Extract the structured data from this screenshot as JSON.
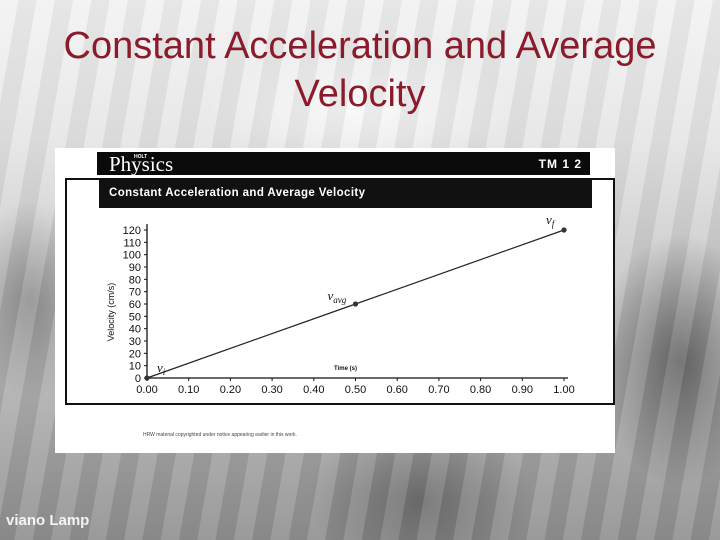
{
  "slide": {
    "title": "Constant Acceleration and Average Velocity",
    "watermark": "viano Lamp"
  },
  "figure": {
    "brand": "Physics",
    "brand_small": "HOLT",
    "code": "TM 1 2",
    "subtitle": "Constant Acceleration and Average Velocity",
    "footnote": "HRW material copyrighted under notice appearing earlier in this work."
  },
  "chart_data": {
    "type": "line",
    "title": "Constant Acceleration and Average Velocity",
    "xlabel": "Time (s)",
    "ylabel": "Velocity (cm/s)",
    "xlim": [
      0,
      1.0
    ],
    "ylim": [
      0,
      120
    ],
    "x_ticks": [
      "0.00",
      "0.10",
      "0.20",
      "0.30",
      "0.40",
      "0.50",
      "0.60",
      "0.70",
      "0.80",
      "0.90",
      "1.00"
    ],
    "y_ticks": [
      "0",
      "10",
      "20",
      "30",
      "40",
      "50",
      "60",
      "70",
      "80",
      "90",
      "100",
      "110",
      "120"
    ],
    "grid": false,
    "series": [
      {
        "x": [
          0.0,
          0.5,
          1.0
        ],
        "y": [
          0,
          60,
          120
        ],
        "color": "#222222"
      }
    ],
    "points": [
      {
        "x": 0.0,
        "y": 0,
        "label": "v",
        "sub": "i"
      },
      {
        "x": 0.5,
        "y": 60,
        "label": "v",
        "sub": "avg"
      },
      {
        "x": 1.0,
        "y": 120,
        "label": "v",
        "sub": "f"
      }
    ]
  }
}
